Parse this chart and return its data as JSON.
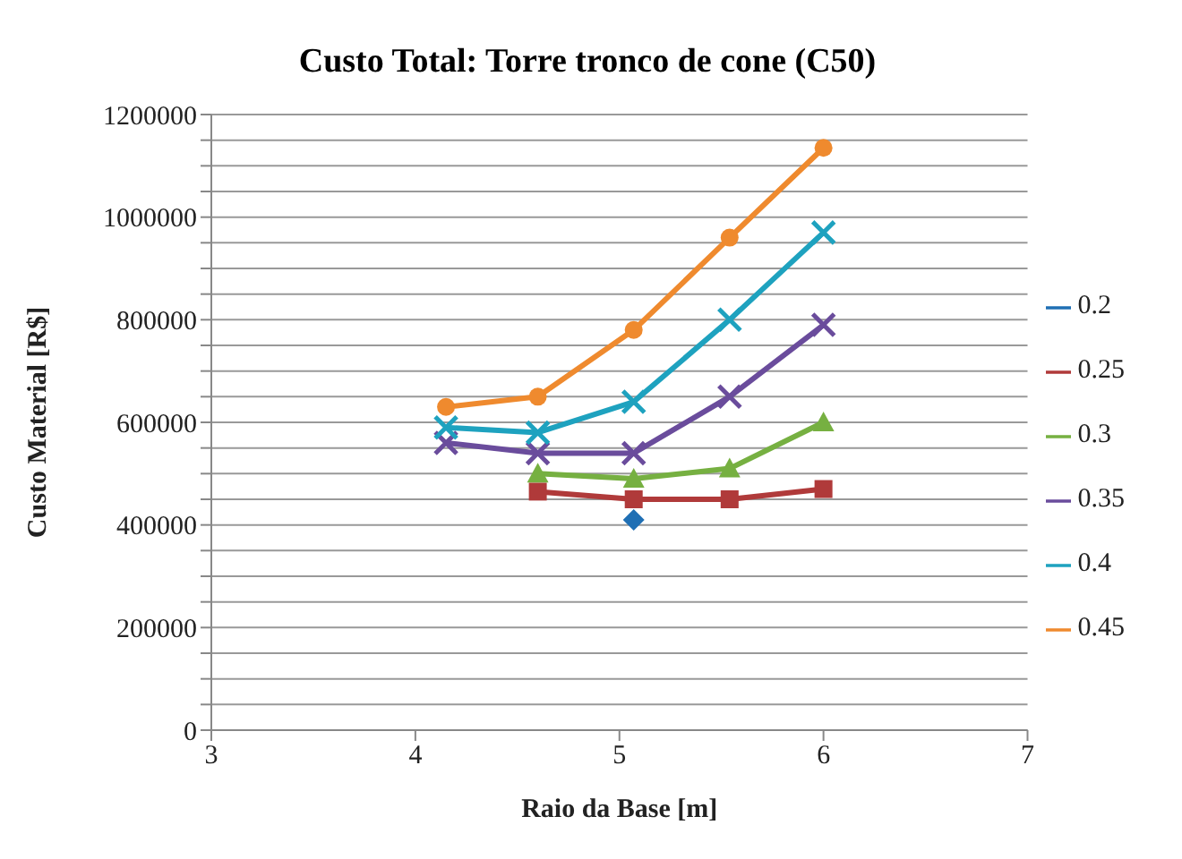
{
  "chart_data": {
    "type": "line",
    "title": "Custo Total: Torre tronco de cone (C50)",
    "xlabel": "Raio da Base [m]",
    "ylabel": "Custo Material [R$]",
    "xlim": [
      3,
      7
    ],
    "xticks": [
      3,
      4,
      5,
      6,
      7
    ],
    "ylim": [
      0,
      1200000
    ],
    "yticks": [
      0,
      {
        "value": 50000,
        "label": null
      },
      {
        "value": 100000,
        "label": null
      },
      {
        "value": 150000,
        "label": null
      },
      200000,
      {
        "value": 250000,
        "label": null
      },
      {
        "value": 300000,
        "label": null
      },
      {
        "value": 350000,
        "label": null
      },
      400000,
      {
        "value": 450000,
        "label": null
      },
      {
        "value": 500000,
        "label": null
      },
      {
        "value": 550000,
        "label": null
      },
      600000,
      {
        "value": 650000,
        "label": null
      },
      {
        "value": 700000,
        "label": null
      },
      {
        "value": 750000,
        "label": null
      },
      800000,
      {
        "value": 850000,
        "label": null
      },
      {
        "value": 900000,
        "label": null
      },
      {
        "value": 950000,
        "label": null
      },
      1000000,
      {
        "value": 1050000,
        "label": null
      },
      {
        "value": 1100000,
        "label": null
      },
      {
        "value": 1150000,
        "label": null
      },
      1200000
    ],
    "grid": "y",
    "legend": "right",
    "line_style": "solid",
    "series": [
      {
        "name": "0.2",
        "color": "#1f6fb4",
        "marker": "diamond",
        "x": [
          5.07
        ],
        "values": [
          410000
        ]
      },
      {
        "name": "0.25",
        "color": "#b03a3a",
        "marker": "square",
        "x": [
          4.6,
          5.07,
          5.54,
          6.0
        ],
        "values": [
          465000,
          450000,
          450000,
          470000
        ]
      },
      {
        "name": "0.3",
        "color": "#76b041",
        "marker": "triangle",
        "x": [
          4.6,
          5.07,
          5.54,
          6.0
        ],
        "values": [
          500000,
          490000,
          510000,
          600000
        ]
      },
      {
        "name": "0.35",
        "color": "#6a4c9c",
        "marker": "cross",
        "x": [
          4.15,
          4.6,
          5.07,
          5.54,
          6.0
        ],
        "values": [
          560000,
          540000,
          540000,
          650000,
          790000
        ]
      },
      {
        "name": "0.4",
        "color": "#1ea2bf",
        "marker": "cross",
        "x": [
          4.15,
          4.6,
          5.07,
          5.54,
          6.0
        ],
        "values": [
          590000,
          580000,
          640000,
          800000,
          970000
        ]
      },
      {
        "name": "0.45",
        "color": "#ef8a2e",
        "marker": "circle",
        "x": [
          4.15,
          4.6,
          5.07,
          5.54,
          6.0
        ],
        "values": [
          630000,
          650000,
          780000,
          960000,
          1135000
        ]
      }
    ]
  }
}
